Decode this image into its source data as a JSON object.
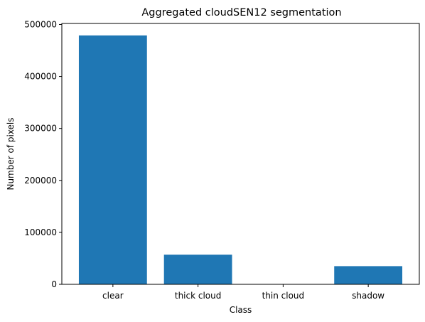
{
  "chart_data": {
    "type": "bar",
    "title": "Aggregated cloudSEN12 segmentation",
    "xlabel": "Class",
    "ylabel": "Number of pixels",
    "categories": [
      "clear",
      "thick cloud",
      "thin cloud",
      "shadow"
    ],
    "values": [
      479000,
      57000,
      0,
      35000
    ],
    "ylim": [
      0,
      502000
    ],
    "yticks": [
      0,
      100000,
      200000,
      300000,
      400000,
      500000
    ],
    "ytick_labels": [
      "0",
      "100000",
      "200000",
      "300000",
      "400000",
      "500000"
    ],
    "bar_color": "#1f77b4",
    "grid": false,
    "legend": "none"
  }
}
